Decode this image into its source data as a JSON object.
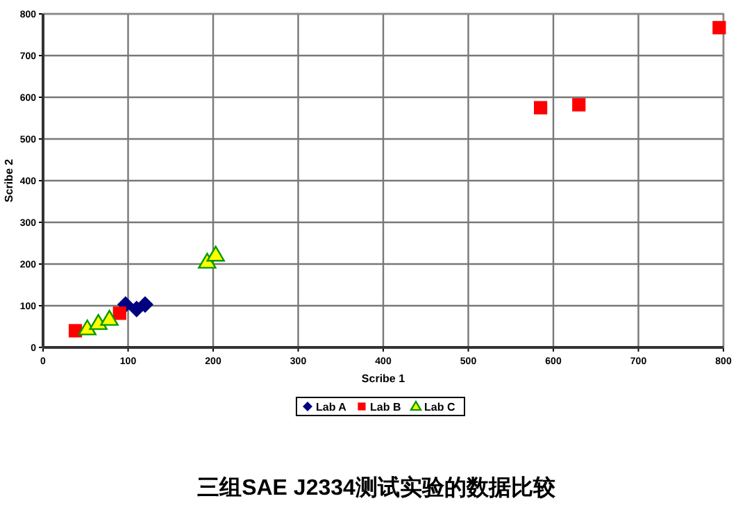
{
  "chart_data": {
    "type": "scatter",
    "xlabel": "Scribe 1",
    "ylabel": "Scribe 2",
    "xlim": [
      0,
      800
    ],
    "ylim": [
      0,
      800
    ],
    "xticks": [
      0,
      100,
      200,
      300,
      400,
      500,
      600,
      700,
      800
    ],
    "yticks": [
      0,
      100,
      200,
      300,
      400,
      500,
      600,
      700,
      800
    ],
    "grid": true,
    "legend": "bottom",
    "annotations": [
      "三组SAE J2334测试实验的数据比较"
    ],
    "series": [
      {
        "name": "Lab A",
        "color": "#000080",
        "marker": "diamond",
        "x": [
          97,
          110,
          120
        ],
        "values": [
          103,
          92,
          103
        ]
      },
      {
        "name": "Lab B",
        "color": "#ff0000",
        "marker": "square",
        "x": [
          38,
          90,
          585,
          630,
          795
        ],
        "values": [
          40,
          82,
          575,
          582,
          767
        ]
      },
      {
        "name": "Lab C",
        "color": "#ffff00",
        "marker": "triangle",
        "x": [
          52,
          65,
          78,
          193,
          203
        ],
        "values": [
          45,
          58,
          68,
          205,
          222
        ]
      }
    ]
  }
}
